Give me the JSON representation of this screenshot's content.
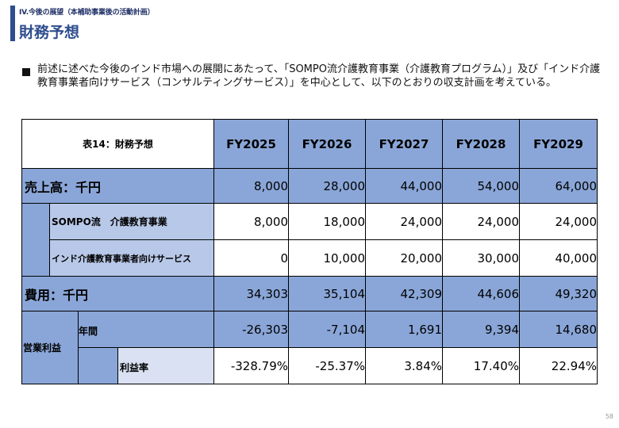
{
  "header": {
    "section_label": "IV.今後の展望（本補助事業後の活動計画）",
    "title": "財務予想"
  },
  "intro_text": "前述に述べた今後のインド市場への展開にあたって、「SOMPO流介護教育事業（介護教育プログラム）」及び「インド介護教育事業者向けサービス（コンサルティングサービス）」を中心として、以下のとおりの収支計画を考えている。",
  "table": {
    "caption": "表14：財務予想",
    "years": [
      "FY2025",
      "FY2026",
      "FY2027",
      "FY2028",
      "FY2029"
    ],
    "sales": {
      "label": "売上高：千円",
      "values": [
        "8,000",
        "28,000",
        "44,000",
        "54,000",
        "64,000"
      ]
    },
    "sompo": {
      "label": "SOMPO流　介護教育事業",
      "values": [
        "8,000",
        "18,000",
        "24,000",
        "24,000",
        "24,000"
      ]
    },
    "india": {
      "label": "インド介護教育事業者向けサービス",
      "values": [
        "0",
        "10,000",
        "20,000",
        "30,000",
        "40,000"
      ]
    },
    "costs": {
      "label": "費用：千円",
      "values": [
        "34,303",
        "35,104",
        "42,309",
        "44,606",
        "49,320"
      ]
    },
    "operating_profit": {
      "label": "営業利益",
      "annual_label": "年間",
      "annual_values": [
        "-26,303",
        "-7,104",
        "1,691",
        "9,394",
        "14,680"
      ],
      "margin_label": "利益率",
      "margin_values": [
        "-328.79%",
        "-25.37%",
        "3.84%",
        "17.40%",
        "22.94%"
      ]
    }
  },
  "page_number": "58",
  "colors": {
    "accent": "#2e4d8f",
    "header_blue": "#8aa6d8",
    "sub_blue": "#b8c8e8",
    "light_blue": "#d9e1f2"
  }
}
